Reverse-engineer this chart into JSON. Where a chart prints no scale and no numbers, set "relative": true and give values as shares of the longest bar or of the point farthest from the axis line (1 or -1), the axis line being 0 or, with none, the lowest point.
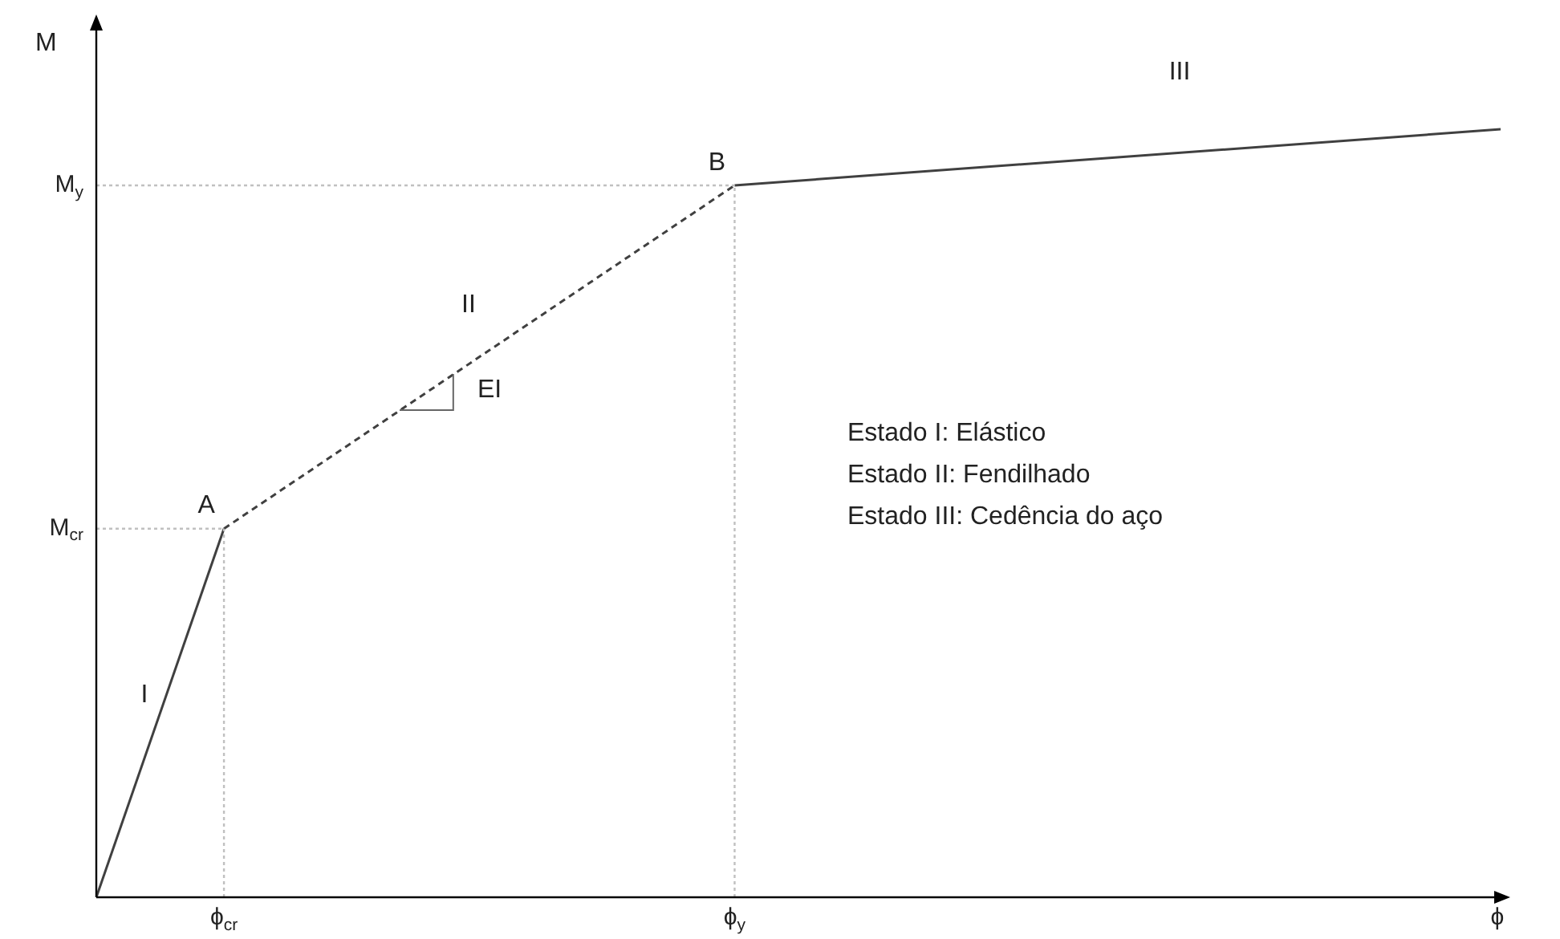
{
  "chart_data": {
    "type": "line",
    "relative": true,
    "xlabel": "ϕ",
    "ylabel": "M",
    "legend": false,
    "marker": "none",
    "categories": [
      null,
      "ϕ$_{cr}$",
      null,
      null,
      null,
      "ϕ$_{y}$",
      null,
      null,
      null,
      null,
      null,
      null
    ],
    "series": [
      {
        "color": "#404040",
        "line_style": [
          "solid",
          "dashed",
          "solid"
        ],
        "values": [
          0,
          0.48,
          null,
          null,
          null,
          0.927,
          null,
          null,
          null,
          null,
          null,
          1
        ]
      }
    ],
    "annotations": [
      "M$_{cr}$",
      "M$_{y}$",
      {
        "text": "A",
        "x": "ϕ$_{cr}$",
        "y": 0.48
      },
      {
        "text": "B",
        "x": "ϕ$_{y}$",
        "y": 0.927
      },
      "I",
      "II",
      "III",
      "EI",
      "Estado I: Elástico",
      "Estado II: Fendilhado",
      "Estado III: Cedência do aço"
    ]
  }
}
